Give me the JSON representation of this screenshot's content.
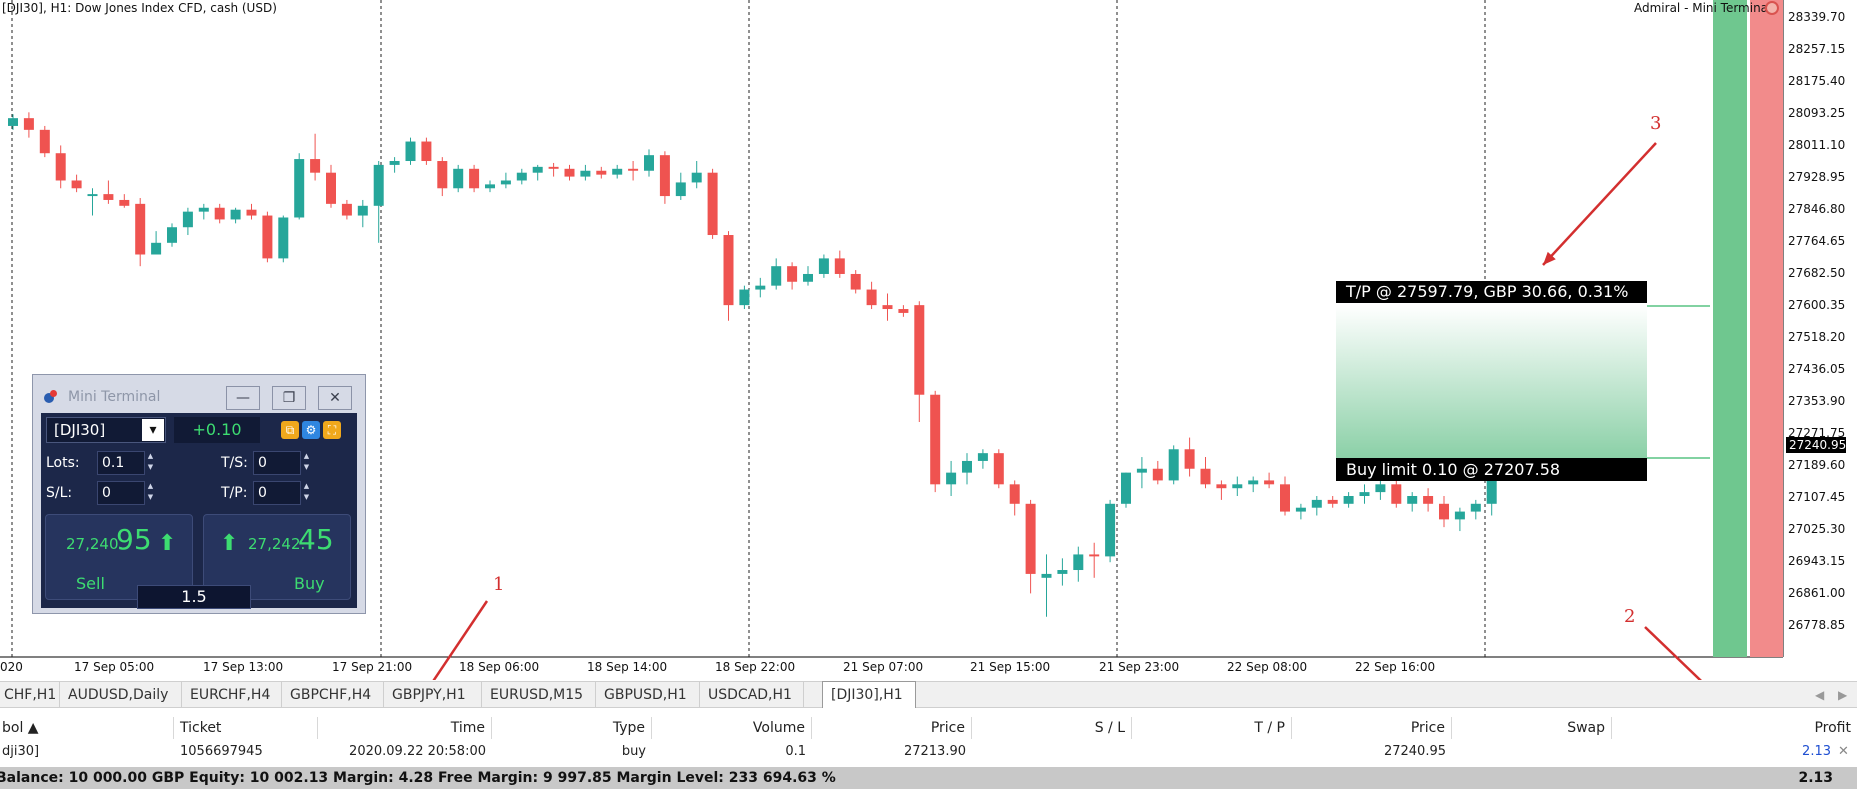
{
  "chart": {
    "title": "[DJI30], H1:  Dow Jones Index CFD, cash (USD)",
    "brand": "Admiral - Mini Terminal",
    "price_labels": [
      "28339.70",
      "28257.15",
      "28175.40",
      "28093.25",
      "28011.10",
      "27928.95",
      "27846.80",
      "27764.65",
      "27682.50",
      "27600.35",
      "27518.20",
      "27436.05",
      "27353.90",
      "27271.75",
      "27189.60",
      "27107.45",
      "27025.30",
      "26943.15",
      "26861.00",
      "26778.85"
    ],
    "current_price": "27240.95",
    "time_labels": [
      "020",
      "17 Sep 05:00",
      "17 Sep 13:00",
      "17 Sep 21:00",
      "18 Sep 06:00",
      "18 Sep 14:00",
      "18 Sep 22:00",
      "21 Sep 07:00",
      "21 Sep 15:00",
      "21 Sep 23:00",
      "22 Sep 08:00",
      "22 Sep 16:00"
    ],
    "price_scale": {
      "max": 28339.7,
      "min": 26778.85
    },
    "candles": [
      [
        28060,
        28090,
        28050,
        28080
      ],
      [
        28080,
        28095,
        28030,
        28050
      ],
      [
        28050,
        28060,
        27980,
        27990
      ],
      [
        27990,
        28010,
        27900,
        27920
      ],
      [
        27920,
        27935,
        27890,
        27900
      ],
      [
        27880,
        27900,
        27830,
        27885
      ],
      [
        27885,
        27920,
        27860,
        27870
      ],
      [
        27870,
        27885,
        27850,
        27855
      ],
      [
        27860,
        27875,
        27700,
        27730
      ],
      [
        27730,
        27790,
        27730,
        27760
      ],
      [
        27760,
        27810,
        27750,
        27800
      ],
      [
        27800,
        27850,
        27780,
        27840
      ],
      [
        27840,
        27860,
        27820,
        27850
      ],
      [
        27850,
        27860,
        27810,
        27820
      ],
      [
        27820,
        27850,
        27810,
        27845
      ],
      [
        27845,
        27860,
        27820,
        27830
      ],
      [
        27830,
        27840,
        27710,
        27720
      ],
      [
        27720,
        27830,
        27710,
        27825
      ],
      [
        27825,
        27990,
        27820,
        27975
      ],
      [
        27975,
        28040,
        27920,
        27940
      ],
      [
        27940,
        27960,
        27850,
        27860
      ],
      [
        27860,
        27870,
        27820,
        27830
      ],
      [
        27830,
        27870,
        27800,
        27855
      ],
      [
        27855,
        27970,
        27760,
        27960
      ],
      [
        27960,
        27980,
        27940,
        27970
      ],
      [
        27970,
        28030,
        27960,
        28020
      ],
      [
        28020,
        28030,
        27960,
        27970
      ],
      [
        27970,
        27980,
        27880,
        27900
      ],
      [
        27900,
        27960,
        27890,
        27950
      ],
      [
        27950,
        27960,
        27890,
        27900
      ],
      [
        27900,
        27920,
        27890,
        27910
      ],
      [
        27910,
        27940,
        27900,
        27920
      ],
      [
        27920,
        27950,
        27910,
        27940
      ],
      [
        27940,
        27960,
        27920,
        27955
      ],
      [
        27955,
        27965,
        27930,
        27950
      ],
      [
        27950,
        27960,
        27920,
        27930
      ],
      [
        27930,
        27960,
        27920,
        27945
      ],
      [
        27945,
        27955,
        27925,
        27935
      ],
      [
        27935,
        27960,
        27925,
        27950
      ],
      [
        27950,
        27970,
        27920,
        27945
      ],
      [
        27945,
        28000,
        27930,
        27985
      ],
      [
        27985,
        27995,
        27860,
        27880
      ],
      [
        27880,
        27940,
        27870,
        27915
      ],
      [
        27915,
        27970,
        27900,
        27940
      ],
      [
        27940,
        27950,
        27770,
        27780
      ],
      [
        27780,
        27790,
        27560,
        27600
      ],
      [
        27600,
        27650,
        27590,
        27640
      ],
      [
        27640,
        27670,
        27620,
        27650
      ],
      [
        27650,
        27720,
        27640,
        27700
      ],
      [
        27700,
        27710,
        27640,
        27660
      ],
      [
        27660,
        27700,
        27650,
        27680
      ],
      [
        27680,
        27730,
        27670,
        27720
      ],
      [
        27720,
        27740,
        27670,
        27680
      ],
      [
        27680,
        27690,
        27630,
        27640
      ],
      [
        27640,
        27660,
        27590,
        27600
      ],
      [
        27600,
        27630,
        27560,
        27590
      ],
      [
        27590,
        27600,
        27570,
        27580
      ],
      [
        27600,
        27610,
        27300,
        27370
      ],
      [
        27370,
        27380,
        27120,
        27140
      ],
      [
        27140,
        27200,
        27110,
        27170
      ],
      [
        27170,
        27220,
        27140,
        27200
      ],
      [
        27200,
        27230,
        27180,
        27220
      ],
      [
        27220,
        27230,
        27130,
        27140
      ],
      [
        27140,
        27150,
        27060,
        27090
      ],
      [
        27090,
        27100,
        26860,
        26910
      ],
      [
        26900,
        26960,
        26800,
        26910
      ],
      [
        26910,
        26950,
        26880,
        26920
      ],
      [
        26920,
        26980,
        26890,
        26960
      ],
      [
        26960,
        26990,
        26900,
        26955
      ],
      [
        26955,
        27100,
        26940,
        27090
      ],
      [
        27090,
        27170,
        27080,
        27170
      ],
      [
        27170,
        27210,
        27130,
        27180
      ],
      [
        27180,
        27200,
        27140,
        27150
      ],
      [
        27150,
        27240,
        27140,
        27230
      ],
      [
        27230,
        27260,
        27160,
        27180
      ],
      [
        27180,
        27210,
        27130,
        27140
      ],
      [
        27140,
        27150,
        27100,
        27130
      ],
      [
        27130,
        27160,
        27110,
        27140
      ],
      [
        27140,
        27160,
        27120,
        27150
      ],
      [
        27150,
        27170,
        27130,
        27140
      ],
      [
        27140,
        27160,
        27060,
        27070
      ],
      [
        27070,
        27090,
        27050,
        27080
      ],
      [
        27080,
        27110,
        27060,
        27100
      ],
      [
        27100,
        27110,
        27080,
        27090
      ],
      [
        27090,
        27120,
        27080,
        27110
      ],
      [
        27110,
        27140,
        27090,
        27120
      ],
      [
        27120,
        27150,
        27100,
        27140
      ],
      [
        27140,
        27190,
        27080,
        27090
      ],
      [
        27090,
        27120,
        27070,
        27110
      ],
      [
        27110,
        27130,
        27070,
        27090
      ],
      [
        27090,
        27110,
        27030,
        27050
      ],
      [
        27050,
        27080,
        27020,
        27070
      ],
      [
        27070,
        27100,
        27050,
        27090
      ],
      [
        27090,
        27170,
        27060,
        27160
      ],
      [
        27160,
        27230,
        27150,
        27170
      ]
    ]
  },
  "tp_line": {
    "label": "T/P @ 27597.79, GBP 30.66, 0.31%",
    "price": 27597.79
  },
  "buy_limit": {
    "label": "Buy limit 0.10 @ 27207.58",
    "price": 27207.58
  },
  "annotations": [
    "1",
    "2",
    "3"
  ],
  "mini_terminal": {
    "title": "Mini Terminal",
    "minimize": "—",
    "maximize": "❐",
    "close": "✕",
    "symbol": "[DJI30]",
    "change": "+0.10",
    "lots_label": "Lots:",
    "lots": "0.1",
    "ts_label": "T/S:",
    "ts": "0",
    "sl_label": "S/L:",
    "sl": "0",
    "tp_label": "T/P:",
    "tp": "0",
    "sell_small": "27,240.",
    "sell_big": "95",
    "buy_small": "27,242.",
    "buy_big": "45",
    "sell_label": "Sell",
    "buy_label": "Buy",
    "volume": "1.5",
    "colors": {
      "up": "#3ddc71",
      "panel": "#1c2749"
    }
  },
  "tabs": [
    "CHF,H1",
    "AUDUSD,Daily",
    "EURCHF,H4",
    "GBPCHF,H4",
    "GBPJPY,H1",
    "EURUSD,M15",
    "GBPUSD,H1",
    "USDCAD,H1",
    "[DJI30],H1"
  ],
  "active_tab": "[DJI30],H1",
  "trade_table": {
    "headers": [
      "bol",
      "Ticket",
      "Time",
      "Type",
      "Volume",
      "Price",
      "S / L",
      "T / P",
      "Price",
      "Swap",
      "Profit"
    ],
    "row": [
      "dji30]",
      "1056697945",
      "2020.09.22 20:58:00",
      "buy",
      "0.1",
      "27213.90",
      "",
      "",
      "27240.95",
      "",
      "2.13"
    ],
    "close_icon": "✕"
  },
  "summary": {
    "text": "Balance: 10 000.00 GBP  Equity: 10 002.13  Margin: 4.28  Free Margin: 9 997.85  Margin Level: 233 694.63 %",
    "total": "2.13"
  },
  "colors": {
    "bull": "#26a69a",
    "bear": "#ef5350",
    "tp_line": "#58c383",
    "annotation": "#d32f2f"
  }
}
